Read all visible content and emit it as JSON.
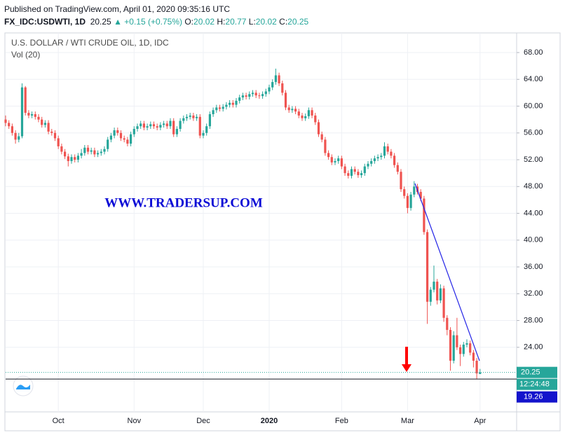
{
  "header": {
    "published": "Published on TradingView.com, April 01, 2020 09:35:16 UTC",
    "symbol": "FX_IDC:USDWTI, 1D",
    "last": "20.25",
    "change": "▲ +0.15 (+0.75%)",
    "ohlc": [
      {
        "key": "O:",
        "value": "20.02"
      },
      {
        "key": "H:",
        "value": "20.77"
      },
      {
        "key": "L:",
        "value": "20.02"
      },
      {
        "key": "C:",
        "value": "20.25"
      }
    ]
  },
  "watermark": "WWW.TRADERSUP.COM",
  "chart_data": {
    "type": "candlestick",
    "title": "U.S. DOLLAR / WTI CRUDE OIL, 1D, IDC",
    "subtitle": "Vol (20)",
    "categories": [
      null,
      null,
      null,
      null,
      null,
      null,
      null,
      null,
      null,
      null,
      null,
      null,
      null,
      null,
      null,
      null,
      "Oct",
      null,
      null,
      null,
      null,
      null,
      null,
      null,
      null,
      null,
      null,
      null,
      null,
      null,
      null,
      null,
      null,
      null,
      null,
      null,
      null,
      null,
      null,
      "Nov",
      null,
      null,
      null,
      null,
      null,
      null,
      null,
      null,
      null,
      null,
      null,
      null,
      null,
      null,
      null,
      null,
      null,
      null,
      null,
      null,
      "Dec",
      null,
      null,
      null,
      null,
      null,
      null,
      null,
      null,
      null,
      null,
      null,
      null,
      null,
      null,
      null,
      null,
      null,
      null,
      null,
      "2020",
      null,
      null,
      null,
      null,
      null,
      null,
      null,
      null,
      null,
      null,
      null,
      null,
      null,
      null,
      null,
      null,
      null,
      null,
      null,
      null,
      null,
      "Feb",
      null,
      null,
      null,
      null,
      null,
      null,
      null,
      null,
      null,
      null,
      null,
      null,
      null,
      null,
      null,
      null,
      null,
      null,
      null,
      "Mar",
      null,
      null,
      null,
      null,
      null,
      null,
      null,
      null,
      null,
      null,
      null,
      null,
      null,
      null,
      null,
      null,
      null,
      null,
      null,
      null,
      null,
      "Apr"
    ],
    "open": [
      58.0,
      57.5,
      57.0,
      56.0,
      55.0,
      55.5,
      62.8,
      59.0,
      58.6,
      58.8,
      58.4,
      58.0,
      57.2,
      57.5,
      56.2,
      56.0,
      55.2,
      54.0,
      53.2,
      52.5,
      51.8,
      52.4,
      52.0,
      52.6,
      53.0,
      53.8,
      53.2,
      53.4,
      52.8,
      53.0,
      53.2,
      53.6,
      55.0,
      55.6,
      56.4,
      56.0,
      55.2,
      55.0,
      54.4,
      55.8,
      56.6,
      57.0,
      57.4,
      56.8,
      57.0,
      57.3,
      57.0,
      56.8,
      57.2,
      57.4,
      57.0,
      57.8,
      55.8,
      56.6,
      57.8,
      58.2,
      58.4,
      58.6,
      58.2,
      58.4,
      55.6,
      56.0,
      57.0,
      58.8,
      59.4,
      59.8,
      59.6,
      59.9,
      60.2,
      60.5,
      60.2,
      60.8,
      61.3,
      61.6,
      61.4,
      61.8,
      62.0,
      61.6,
      61.5,
      61.8,
      62.2,
      62.8,
      63.6,
      64.6,
      63.4,
      62.0,
      59.8,
      59.4,
      59.6,
      59.2,
      58.6,
      58.2,
      58.5,
      59.4,
      58.6,
      57.6,
      55.8,
      55.0,
      53.0,
      52.4,
      51.6,
      51.8,
      52.2,
      51.0,
      50.0,
      49.6,
      50.6,
      50.2,
      49.7,
      50.0,
      51.0,
      51.4,
      51.8,
      52.2,
      52.4,
      52.6,
      54.0,
      53.2,
      52.6,
      51.2,
      50.2,
      47.6,
      46.6,
      44.8,
      46.8,
      48.0,
      47.2,
      46.2,
      41.2,
      30.8,
      32.6,
      33.8,
      31.0,
      32.8,
      28.4,
      26.6,
      22.0,
      25.8,
      24.0,
      23.0,
      24.4,
      24.6,
      23.2,
      22.0,
      20.02
    ],
    "high": [
      58.6,
      57.9,
      57.4,
      56.4,
      56.0,
      63.4,
      63.0,
      59.4,
      59.2,
      59.2,
      58.8,
      58.4,
      57.9,
      57.9,
      56.6,
      56.4,
      55.6,
      54.4,
      53.6,
      52.9,
      52.8,
      52.8,
      53.0,
      53.6,
      54.2,
      54.2,
      53.8,
      53.8,
      53.4,
      53.6,
      54.0,
      55.4,
      56.0,
      56.8,
      56.8,
      56.4,
      55.6,
      55.4,
      56.2,
      57.0,
      57.4,
      57.8,
      57.8,
      57.4,
      57.7,
      57.7,
      57.4,
      57.6,
      57.8,
      57.8,
      58.2,
      58.2,
      57.0,
      58.2,
      58.6,
      58.8,
      59.0,
      59.0,
      58.8,
      58.8,
      56.4,
      57.4,
      59.2,
      59.8,
      60.2,
      60.2,
      60.3,
      60.6,
      60.9,
      60.9,
      61.2,
      61.7,
      62.0,
      62.0,
      62.2,
      62.4,
      62.4,
      62.0,
      62.2,
      62.6,
      63.2,
      64.0,
      65.6,
      65.0,
      63.8,
      62.4,
      60.2,
      60.0,
      60.0,
      59.6,
      59.0,
      58.9,
      59.8,
      59.8,
      59.0,
      58.0,
      56.2,
      55.4,
      53.4,
      52.8,
      52.2,
      52.6,
      52.6,
      51.4,
      50.4,
      51.0,
      51.0,
      50.6,
      50.4,
      51.4,
      51.8,
      52.2,
      52.6,
      52.8,
      53.0,
      54.6,
      54.4,
      53.6,
      53.0,
      51.6,
      50.6,
      48.0,
      47.0,
      47.2,
      48.8,
      48.4,
      47.6,
      46.6,
      41.6,
      33.0,
      36.2,
      34.2,
      33.4,
      33.2,
      28.8,
      27.0,
      26.4,
      28.4,
      24.4,
      24.8,
      25.2,
      25.0,
      23.6,
      22.4,
      20.77
    ],
    "low": [
      57.0,
      56.6,
      55.6,
      54.4,
      54.6,
      55.2,
      58.6,
      58.2,
      58.2,
      58.0,
      57.6,
      56.8,
      56.8,
      55.8,
      55.6,
      54.8,
      53.6,
      52.8,
      52.1,
      51.0,
      51.4,
      51.6,
      51.6,
      52.2,
      52.6,
      52.8,
      52.8,
      52.4,
      52.4,
      52.6,
      52.8,
      53.2,
      54.6,
      55.2,
      55.6,
      54.8,
      54.6,
      54.0,
      54.0,
      55.4,
      56.2,
      56.6,
      56.4,
      56.4,
      56.6,
      56.6,
      56.4,
      56.4,
      56.8,
      56.6,
      56.6,
      55.4,
      55.4,
      56.2,
      57.4,
      57.8,
      58.0,
      57.8,
      57.8,
      55.2,
      55.2,
      55.6,
      56.6,
      58.4,
      59.0,
      59.2,
      59.2,
      59.5,
      59.8,
      59.8,
      59.8,
      60.4,
      60.9,
      61.0,
      61.0,
      61.4,
      61.2,
      61.1,
      61.1,
      61.4,
      61.8,
      62.4,
      63.2,
      63.0,
      61.6,
      59.4,
      59.0,
      59.0,
      58.8,
      58.2,
      57.8,
      57.8,
      58.1,
      58.2,
      57.2,
      55.4,
      54.6,
      52.6,
      52.0,
      51.2,
      51.2,
      51.4,
      50.6,
      49.6,
      49.2,
      49.2,
      49.8,
      49.3,
      49.3,
      49.6,
      50.6,
      51.0,
      51.4,
      51.8,
      52.0,
      52.2,
      52.8,
      52.2,
      50.8,
      49.8,
      47.2,
      46.2,
      44.0,
      44.4,
      46.4,
      46.8,
      45.8,
      40.8,
      27.5,
      30.2,
      32.2,
      30.4,
      30.6,
      27.8,
      25.8,
      20.5,
      21.6,
      23.6,
      21.2,
      22.6,
      24.0,
      22.8,
      21.0,
      19.3,
      20.02
    ],
    "close": [
      57.5,
      57.0,
      56.0,
      55.0,
      55.5,
      62.8,
      59.0,
      58.6,
      58.8,
      58.4,
      58.0,
      57.2,
      57.5,
      56.2,
      56.0,
      55.2,
      54.0,
      53.2,
      52.5,
      51.8,
      52.4,
      52.0,
      52.6,
      53.0,
      53.8,
      53.2,
      53.4,
      52.8,
      53.0,
      53.2,
      53.6,
      55.0,
      55.6,
      56.4,
      56.0,
      55.2,
      55.0,
      54.4,
      55.8,
      56.6,
      57.0,
      57.4,
      56.8,
      57.0,
      57.3,
      57.0,
      56.8,
      57.2,
      57.4,
      57.0,
      57.8,
      55.8,
      56.6,
      57.8,
      58.2,
      58.4,
      58.6,
      58.2,
      58.4,
      55.6,
      56.0,
      57.0,
      58.8,
      59.4,
      59.8,
      59.6,
      59.9,
      60.2,
      60.5,
      60.2,
      60.8,
      61.3,
      61.6,
      61.4,
      61.8,
      62.0,
      61.6,
      61.5,
      61.8,
      62.2,
      62.8,
      63.6,
      64.6,
      63.4,
      62.0,
      59.8,
      59.4,
      59.6,
      59.2,
      58.6,
      58.2,
      58.5,
      59.4,
      58.6,
      57.6,
      55.8,
      55.0,
      53.0,
      52.4,
      51.6,
      51.8,
      52.2,
      51.0,
      50.0,
      49.6,
      50.6,
      50.2,
      49.7,
      50.0,
      51.0,
      51.4,
      51.8,
      52.2,
      52.4,
      52.6,
      54.0,
      53.2,
      52.6,
      51.2,
      50.2,
      47.6,
      46.6,
      44.8,
      46.8,
      48.0,
      47.2,
      46.2,
      41.2,
      30.8,
      32.6,
      33.8,
      31.0,
      32.8,
      28.4,
      26.6,
      22.0,
      25.8,
      24.0,
      23.0,
      24.4,
      24.6,
      23.2,
      22.0,
      20.1,
      20.25
    ],
    "up_color": "#26a69a",
    "down_color": "#ef5350",
    "ylim": [
      14.36,
      70.93
    ],
    "yticks": [
      {
        "value": 24,
        "label": "24.00"
      },
      {
        "value": 28,
        "label": "28.00"
      },
      {
        "value": 32,
        "label": "32.00"
      },
      {
        "value": 36,
        "label": "36.00"
      },
      {
        "value": 40,
        "label": "40.00"
      },
      {
        "value": 44,
        "label": "44.00"
      },
      {
        "value": 48,
        "label": "48.00"
      },
      {
        "value": 52,
        "label": "52.00"
      },
      {
        "value": 56,
        "label": "56.00"
      },
      {
        "value": 60,
        "label": "60.00"
      },
      {
        "value": 64,
        "label": "64.00"
      },
      {
        "value": 68,
        "label": "68.00"
      }
    ],
    "grid": true,
    "last_price": 20.25,
    "countdown": "12:24:48",
    "low_line": 19.26
  }
}
